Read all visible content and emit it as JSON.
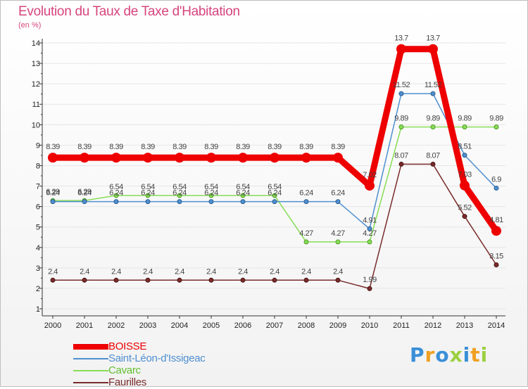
{
  "chart_data": {
    "type": "line",
    "title": "Evolution du Taux de Taxe d'Habitation",
    "subtitle": "(en %)",
    "xlabel": "",
    "ylabel": "",
    "ylim": [
      0.5,
      14.5
    ],
    "yticks": [
      1,
      2,
      3,
      4,
      5,
      6,
      7,
      8,
      9,
      10,
      11,
      12,
      13,
      14
    ],
    "categories": [
      "2000",
      "2001",
      "2002",
      "2003",
      "2004",
      "2005",
      "2006",
      "2007",
      "2008",
      "2009",
      "2010",
      "2011",
      "2012",
      "2013",
      "2014"
    ],
    "series": [
      {
        "name": "BOISSE",
        "color": "#ee0000",
        "values": [
          8.39,
          8.39,
          8.39,
          8.39,
          8.39,
          8.39,
          8.39,
          8.39,
          8.39,
          8.39,
          7.02,
          13.7,
          13.7,
          7.03,
          4.81
        ],
        "labels": [
          "8.39",
          "8.39",
          "8.39",
          "8.39",
          "8.39",
          "8.39",
          "8.39",
          "8.39",
          "8.39",
          "8.39",
          "7.02",
          "13.7",
          "13.7",
          "7.03",
          "4.81"
        ]
      },
      {
        "name": "Saint-Léon-d'Issigeac",
        "color": "#4f8fd0",
        "values": [
          6.24,
          6.24,
          6.24,
          6.24,
          6.24,
          6.24,
          6.24,
          6.24,
          6.24,
          6.24,
          4.91,
          11.52,
          11.52,
          8.51,
          6.9
        ],
        "labels": [
          "6.24",
          "6.24",
          "6.24",
          "6.24",
          "6.24",
          "6.24",
          "6.24",
          "6.24",
          "6.24",
          "6.24",
          "4.91",
          "11.52",
          "11.52",
          "8.51",
          "6.9"
        ]
      },
      {
        "name": "Cavarc",
        "color": "#88dd55",
        "values": [
          6.29,
          6.29,
          6.54,
          6.54,
          6.54,
          6.54,
          6.54,
          6.54,
          4.27,
          4.27,
          4.27,
          9.89,
          9.89,
          9.89,
          9.89
        ],
        "labels": [
          "6.29",
          "6.29",
          "6.54",
          "6.54",
          "6.54",
          "6.54",
          "6.54",
          "6.54",
          "4.27",
          "4.27",
          "4.27",
          "9.89",
          "9.89",
          "9.89",
          "9.89"
        ]
      },
      {
        "name": "Faurilles",
        "color": "#7a2b2b",
        "values": [
          2.4,
          2.4,
          2.4,
          2.4,
          2.4,
          2.4,
          2.4,
          2.4,
          2.4,
          2.4,
          1.99,
          8.07,
          8.07,
          5.52,
          3.15
        ],
        "labels": [
          "2.4",
          "2.4",
          "2.4",
          "2.4",
          "2.4",
          "2.4",
          "2.4",
          "2.4",
          "2.4",
          "2.4",
          "1.99",
          "8.07",
          "8.07",
          "5.52",
          "3.15"
        ]
      }
    ]
  },
  "logo": {
    "letters": [
      "P",
      "r",
      "o",
      "x",
      "i",
      "t",
      "i"
    ],
    "colors": [
      "#3a8fd8",
      "#f0a020",
      "#3a8fd8",
      "#9bd040",
      "#3a8fd8",
      "#f0a020",
      "#9bd040"
    ]
  },
  "colors": {
    "title": "#d6457c",
    "axis": "#333333",
    "grid": "#e6e6e6"
  }
}
